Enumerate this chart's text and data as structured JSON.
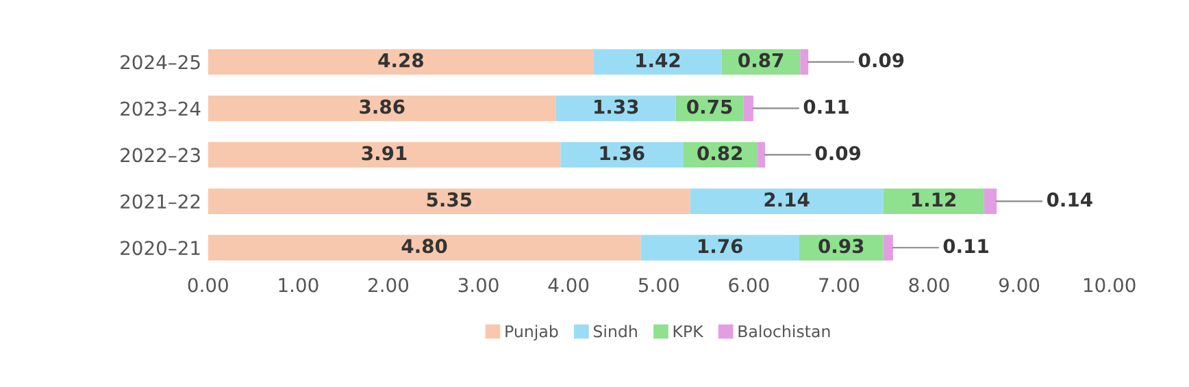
{
  "chart_data": {
    "type": "bar",
    "orientation": "horizontal",
    "stacked": true,
    "categories": [
      "2024–25",
      "2023–24",
      "2022–23",
      "2021–22",
      "2020–21"
    ],
    "series": [
      {
        "name": "Punjab",
        "color": "#f7c8ad",
        "values": [
          4.28,
          3.86,
          3.91,
          5.35,
          4.8
        ],
        "value_labels": [
          "4.28",
          "3.86",
          "3.91",
          "5.35",
          "4.80"
        ]
      },
      {
        "name": "Sindh",
        "color": "#9bdcf5",
        "values": [
          1.42,
          1.33,
          1.36,
          2.14,
          1.76
        ],
        "value_labels": [
          "1.42",
          "1.33",
          "1.36",
          "2.14",
          "1.76"
        ]
      },
      {
        "name": "KPK",
        "color": "#8fe08f",
        "values": [
          0.87,
          0.75,
          0.82,
          1.12,
          0.93
        ],
        "value_labels": [
          "0.87",
          "0.75",
          "0.82",
          "1.12",
          "0.93"
        ]
      },
      {
        "name": "Balochistan",
        "color": "#e39de3",
        "values": [
          0.09,
          0.11,
          0.09,
          0.14,
          0.11
        ],
        "value_labels": [
          "0.09",
          "0.11",
          "0.09",
          "0.14",
          "0.11"
        ]
      }
    ],
    "xlim": [
      0,
      10
    ],
    "xticks": [
      {
        "value": 0,
        "label": "0.00"
      },
      {
        "value": 1,
        "label": "1.00"
      },
      {
        "value": 2,
        "label": "2.00"
      },
      {
        "value": 3,
        "label": "3.00"
      },
      {
        "value": 4,
        "label": "4.00"
      },
      {
        "value": 5,
        "label": "5.00"
      },
      {
        "value": 6,
        "label": "6.00"
      },
      {
        "value": 7,
        "label": "7.00"
      },
      {
        "value": 8,
        "label": "8.00"
      },
      {
        "value": 9,
        "label": "9.00"
      },
      {
        "value": 10,
        "label": "10.00"
      }
    ],
    "grid": false,
    "legend": "bottom"
  }
}
